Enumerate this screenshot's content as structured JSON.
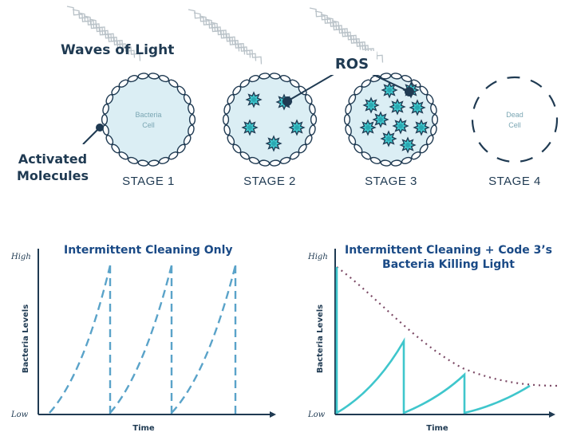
{
  "top": {
    "waves_label": "Waves of Light",
    "ros_label": "ROS",
    "activated_label_line1": "Activated",
    "activated_label_line2": "Molecules",
    "stages": [
      {
        "label": "STAGE 1",
        "cell_line1": "Bacteria",
        "cell_line2": "Cell",
        "ros_count": 0
      },
      {
        "label": "STAGE 2",
        "cell_line1": "",
        "cell_line2": "",
        "ros_count": 5
      },
      {
        "label": "STAGE 3",
        "cell_line1": "",
        "cell_line2": "",
        "ros_count": 11
      },
      {
        "label": "STAGE 4",
        "cell_line1": "Dead",
        "cell_line2": "Cell",
        "ros_count": 0
      }
    ]
  },
  "colors": {
    "navy": "#1f3a52",
    "teal": "#3fc6cc",
    "dashed_blue": "#5aa3c9",
    "cell_fill": "#dbeef4",
    "dotted": "#7c4a66",
    "title_blue": "#1a4a86"
  },
  "charts": [
    {
      "title_line1": "Intermittent Cleaning Only",
      "title_line2": "",
      "xlabel": "Time",
      "ylabel": "Bacteria Levels",
      "high_label": "High",
      "low_label": "Low"
    },
    {
      "title_line1": "Intermittent Cleaning + Code 3’s",
      "title_line2": "Bacteria Killing Light",
      "xlabel": "Time",
      "ylabel": "Bacteria Levels",
      "high_label": "High",
      "low_label": "Low"
    }
  ]
}
